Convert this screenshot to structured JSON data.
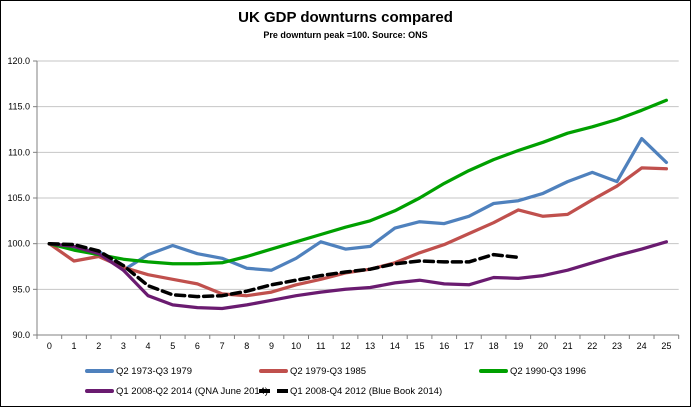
{
  "chart_data": {
    "type": "line",
    "title": "UK GDP downturns compared",
    "subtitle": "Pre downturn peak =100. Source: ONS",
    "xlim": [
      0,
      25
    ],
    "ylim": [
      90,
      120
    ],
    "grid": true,
    "legend_position": "bottom",
    "x": [
      0,
      1,
      2,
      3,
      4,
      5,
      6,
      7,
      8,
      9,
      10,
      11,
      12,
      13,
      14,
      15,
      16,
      17,
      18,
      19,
      20,
      21,
      22,
      23,
      24,
      25
    ],
    "x_tick_labels": [
      "0",
      "1",
      "2",
      "3",
      "4",
      "5",
      "6",
      "7",
      "8",
      "9",
      "10",
      "11",
      "12",
      "13",
      "14",
      "15",
      "16",
      "17",
      "18",
      "19",
      "20",
      "21",
      "22",
      "23",
      "24",
      "25"
    ],
    "y_ticks": [
      90,
      95,
      100,
      105,
      110,
      115,
      120
    ],
    "y_tick_labels": [
      "90.0",
      "95.0",
      "100.0",
      "105.0",
      "110.0",
      "115.0",
      "120.0"
    ],
    "series": [
      {
        "name": "Q2 1973-Q3 1979",
        "color": "#4F81BD",
        "dash": false,
        "values": [
          100.0,
          99.4,
          99.2,
          97.1,
          98.8,
          99.8,
          98.9,
          98.4,
          97.3,
          97.1,
          98.4,
          100.2,
          99.4,
          99.7,
          101.7,
          102.4,
          102.2,
          103.0,
          104.4,
          104.7,
          105.5,
          106.8,
          107.8,
          106.8,
          111.5,
          108.9
        ]
      },
      {
        "name": "Q2 1979-Q3 1985",
        "color": "#C0504D",
        "dash": false,
        "values": [
          100.0,
          98.1,
          98.6,
          97.4,
          96.6,
          96.1,
          95.6,
          94.5,
          94.3,
          94.7,
          95.5,
          96.1,
          96.8,
          97.2,
          97.9,
          99.0,
          99.9,
          101.1,
          102.3,
          103.7,
          103.0,
          103.2,
          104.8,
          106.3,
          108.3,
          108.2
        ]
      },
      {
        "name": "Q2 1990-Q3 1996",
        "color": "#00A000",
        "dash": false,
        "values": [
          100.0,
          99.3,
          98.8,
          98.3,
          98.0,
          97.8,
          97.8,
          97.9,
          98.6,
          99.4,
          100.2,
          101.0,
          101.8,
          102.5,
          103.6,
          105.0,
          106.6,
          108.0,
          109.2,
          110.2,
          111.1,
          112.1,
          112.8,
          113.6,
          114.6,
          115.7
        ]
      },
      {
        "name": "Q1 2008-Q2 2014 (QNA June 2014)",
        "color": "#6A1B70",
        "dash": false,
        "values": [
          100.0,
          99.7,
          98.9,
          97.1,
          94.3,
          93.3,
          93.0,
          92.9,
          93.3,
          93.8,
          94.3,
          94.7,
          95.0,
          95.2,
          95.7,
          96.0,
          95.6,
          95.5,
          96.3,
          96.2,
          96.5,
          97.1,
          97.9,
          98.7,
          99.4,
          100.2
        ]
      },
      {
        "name": "Q1 2008-Q4 2012 (Blue Book 2014)",
        "color": "#000000",
        "dash": true,
        "values": [
          100.0,
          99.9,
          99.2,
          97.6,
          95.4,
          94.4,
          94.2,
          94.3,
          94.8,
          95.5,
          96.0,
          96.5,
          96.9,
          97.2,
          97.8,
          98.1,
          98.0,
          98.0,
          98.8,
          98.5
        ]
      }
    ]
  }
}
